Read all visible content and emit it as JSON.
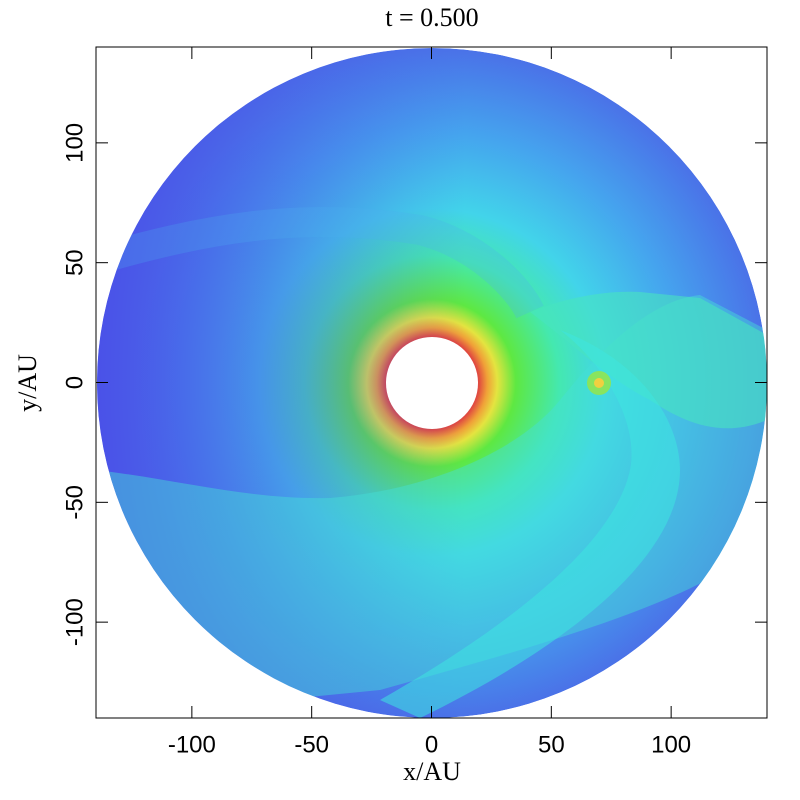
{
  "chart_data": {
    "type": "image",
    "title": "t = 0.500",
    "x_label": "x/AU",
    "y_label": "y/AU",
    "xlim": [
      -140,
      140
    ],
    "ylim": [
      -140,
      140
    ],
    "xticks": [
      -100,
      -50,
      0,
      50,
      100
    ],
    "yticks": [
      -100,
      -50,
      0,
      50,
      100
    ]
  }
}
